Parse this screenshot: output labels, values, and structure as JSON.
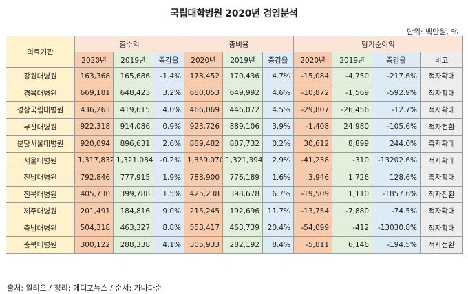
{
  "title": "국립대학병원 2020년 경영분석",
  "unit": "단위: 백만원, %",
  "header": {
    "institution": "의료기관",
    "groups": [
      "총수익",
      "총비용",
      "당기순이익"
    ],
    "y2020": "2020년",
    "y2019": "2019년",
    "change": "증감율",
    "note": "비고"
  },
  "rows": [
    {
      "name": "강원대병원",
      "rev20": "163,368",
      "rev19": "165,686",
      "revp": "-1.4%",
      "cost20": "178,452",
      "cost19": "170,436",
      "costp": "4.7%",
      "net20": "-15,084",
      "net19": "-4,750",
      "netp": "-217.6%",
      "note": "적자확대"
    },
    {
      "name": "경북대병원",
      "rev20": "669,181",
      "rev19": "648,423",
      "revp": "3.2%",
      "cost20": "680,053",
      "cost19": "649,992",
      "costp": "4.6%",
      "net20": "-10,872",
      "net19": "-1,569",
      "netp": "-592.9%",
      "note": "적자확대"
    },
    {
      "name": "경상국립대병원",
      "rev20": "436,263",
      "rev19": "419,615",
      "revp": "4.0%",
      "cost20": "466,069",
      "cost19": "446,072",
      "costp": "4.5%",
      "net20": "-29,807",
      "net19": "-26,456",
      "netp": "-12.7%",
      "note": "적자확대"
    },
    {
      "name": "부산대병원",
      "rev20": "922,318",
      "rev19": "914,086",
      "revp": "0.9%",
      "cost20": "923,726",
      "cost19": "889,106",
      "costp": "3.9%",
      "net20": "-1,408",
      "net19": "24,980",
      "netp": "-105.6%",
      "note": "적자전환"
    },
    {
      "name": "분당서울대병원",
      "rev20": "920,094",
      "rev19": "896,631",
      "revp": "2.6%",
      "cost20": "889,482",
      "cost19": "887,732",
      "costp": "0.2%",
      "net20": "30,612",
      "net19": "8,899",
      "netp": "244.0%",
      "note": "흑자확대"
    },
    {
      "name": "서울대병원",
      "rev20": "1,317,832",
      "rev19": "1,321,084",
      "revp": "-0.2%",
      "cost20": "1,359,070",
      "cost19": "1,321,394",
      "costp": "2.9%",
      "net20": "-41,238",
      "net19": "-310",
      "netp": "-13202.6%",
      "note": "적자확대"
    },
    {
      "name": "전남대병원",
      "rev20": "792,846",
      "rev19": "777,915",
      "revp": "1.9%",
      "cost20": "788,900",
      "cost19": "776,189",
      "costp": "1.6%",
      "net20": "3,946",
      "net19": "1,726",
      "netp": "128.6%",
      "note": "흑자확대"
    },
    {
      "name": "전북대병원",
      "rev20": "405,730",
      "rev19": "399,788",
      "revp": "1.5%",
      "cost20": "425,238",
      "cost19": "398,678",
      "costp": "6.7%",
      "net20": "-19,509",
      "net19": "1,110",
      "netp": "-1857.6%",
      "note": "적자전환"
    },
    {
      "name": "제주대병원",
      "rev20": "201,491",
      "rev19": "184,816",
      "revp": "9.0%",
      "cost20": "215,245",
      "cost19": "192,696",
      "costp": "11.7%",
      "net20": "-13,754",
      "net19": "-7,880",
      "netp": "-74.5%",
      "note": "적자확대"
    },
    {
      "name": "충남대병원",
      "rev20": "504,318",
      "rev19": "463,327",
      "revp": "8.8%",
      "cost20": "558,417",
      "cost19": "463,739",
      "costp": "20.4%",
      "net20": "-54,099",
      "net19": "-412",
      "netp": "-13030.8%",
      "note": "적자확대"
    },
    {
      "name": "충북대병원",
      "rev20": "300,122",
      "rev19": "288,338",
      "revp": "4.1%",
      "cost20": "305,933",
      "cost19": "282,192",
      "costp": "8.4%",
      "net20": "-5,811",
      "net19": "6,146",
      "netp": "-194.5%",
      "note": "적자전환"
    }
  ],
  "source": "출처: 알리오 / 정리: 메디포뉴스 / 순서: 가나다순"
}
